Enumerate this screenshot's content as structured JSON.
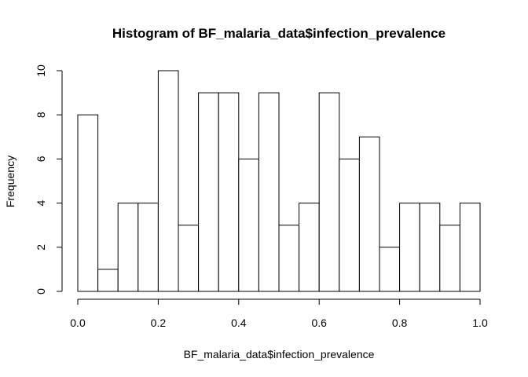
{
  "chart_data": {
    "type": "bar",
    "title": "Histogram of BF_malaria_data$infection_prevalence",
    "xlabel": "BF_malaria_data$infection_prevalence",
    "ylabel": "Frequency",
    "bin_edges": [
      0.0,
      0.05,
      0.1,
      0.15,
      0.2,
      0.25,
      0.3,
      0.35,
      0.4,
      0.45,
      0.5,
      0.55,
      0.6,
      0.65,
      0.7,
      0.75,
      0.8,
      0.85,
      0.9,
      0.95,
      1.0
    ],
    "values": [
      8,
      1,
      4,
      4,
      10,
      3,
      9,
      9,
      6,
      9,
      3,
      4,
      9,
      6,
      7,
      2,
      4,
      4,
      3,
      4
    ],
    "xlim": [
      0.0,
      1.0
    ],
    "ylim": [
      0,
      10
    ],
    "x_ticks": [
      "0.0",
      "0.2",
      "0.4",
      "0.6",
      "0.8",
      "1.0"
    ],
    "y_ticks": [
      "0",
      "2",
      "4",
      "6",
      "8",
      "10"
    ],
    "grid": false,
    "legend": "none"
  }
}
